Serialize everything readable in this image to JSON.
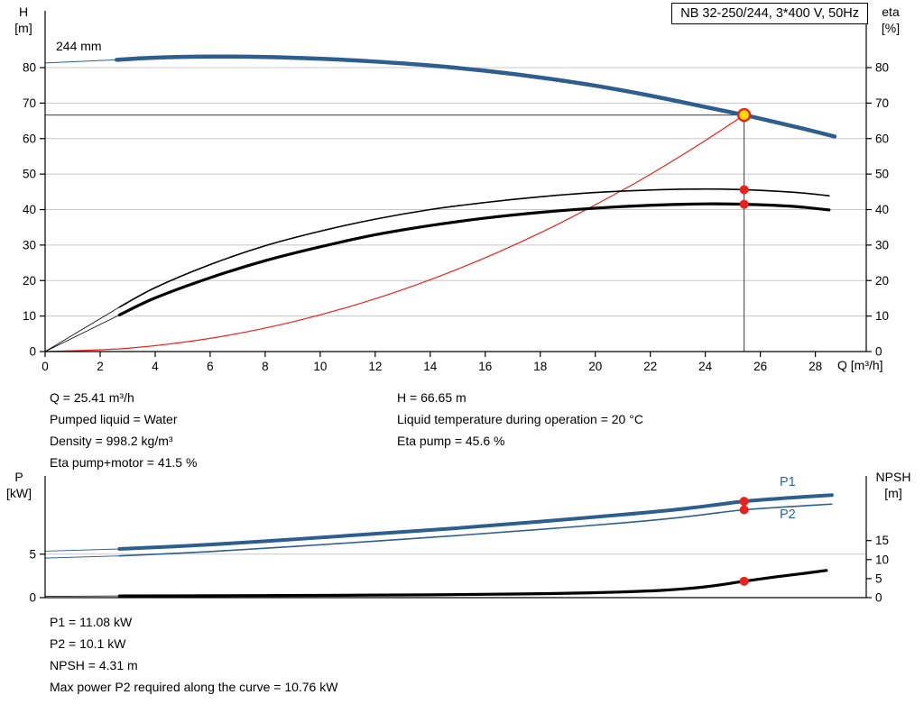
{
  "axis_labels": {
    "top_left": [
      "H",
      "[m]"
    ],
    "top_right": [
      "eta",
      "[%]"
    ],
    "x": "Q [m³/h]",
    "bottom_left": [
      "P",
      "[kW]"
    ],
    "bottom_right": [
      "NPSH",
      "[m]"
    ]
  },
  "results_top": {
    "col_left": [
      "Q = 25.41 m³/h",
      "Pumped liquid = Water",
      "Density = 998.2 kg/m³",
      "Eta pump+motor = 41.5 %"
    ],
    "col_right": [
      "H = 66.65 m",
      "Liquid temperature during operation = 20 °C",
      "Eta pump = 45.6 %"
    ]
  },
  "results_bottom": [
    "P1 = 11.08 kW",
    "P2 = 10.1 kW",
    "NPSH = 4.31 m",
    "Max power P2 required along the curve = 10.76 kW"
  ],
  "operating_point": {
    "Q_m3h": 25.41,
    "H_m": 66.65,
    "eta_pump_pct": 45.6,
    "eta_pump_motor_pct": 41.5,
    "P1_kW": 11.08,
    "P2_kW": 10.1,
    "NPSH_m": 4.31,
    "max_P2_kW": 10.76,
    "liquid": "Water",
    "liquid_temp_C": 20,
    "density_kg_m3": 998.2
  },
  "colors": {
    "curve_blue": "#2d5f8e",
    "label_blue": "#2468b4",
    "red": "#e8231e",
    "duty_yellow": "#ffd800",
    "grid": "#c8c8c8",
    "axis": "#000000",
    "ref_line": "#3c3c3c"
  },
  "chart_data": [
    {
      "type": "line",
      "title": "NB 32-250/244, 3*400 V, 50Hz",
      "curve_label": "244 mm",
      "xlabel": "Q [m³/h]",
      "ylabel_left": "H [m]",
      "ylabel_right": "eta [%]",
      "xlim": [
        0,
        29.85
      ],
      "x_ticks": [
        0,
        2,
        4,
        6,
        8,
        10,
        12,
        14,
        16,
        18,
        20,
        22,
        24,
        26,
        28
      ],
      "ylim_left": [
        0,
        96
      ],
      "y_ticks_left": [
        0,
        10,
        20,
        30,
        40,
        50,
        60,
        70,
        80
      ],
      "ylim_right": [
        0,
        96
      ],
      "y_ticks_right": [
        0,
        10,
        20,
        30,
        40,
        50,
        60,
        70,
        80
      ],
      "grid": "horizontal",
      "series": [
        {
          "name": "duty-h-line",
          "axis": "left",
          "color": "#3c3c3c",
          "width": 1,
          "straight": true,
          "points": [
            [
              0,
              66.65
            ],
            [
              25.41,
              66.65
            ]
          ]
        },
        {
          "name": "duty-v-line",
          "axis": "left",
          "color": "#3c3c3c",
          "width": 1,
          "straight": true,
          "points": [
            [
              25.41,
              0
            ],
            [
              25.41,
              66.65
            ]
          ]
        },
        {
          "name": "system-curve",
          "axis": "left",
          "color": "#e8231e",
          "width": 1.2,
          "points": [
            [
              0,
              0
            ],
            [
              3,
              0.93
            ],
            [
              6,
              3.72
            ],
            [
              9,
              8.36
            ],
            [
              12,
              14.86
            ],
            [
              15,
              23.22
            ],
            [
              18,
              33.44
            ],
            [
              21,
              45.52
            ],
            [
              23,
              54.6
            ],
            [
              24.5,
              61.97
            ],
            [
              25.41,
              66.65
            ]
          ]
        },
        {
          "name": "eta-pump-lead-in",
          "axis": "right",
          "color": "#000000",
          "width": 0.8,
          "straight": true,
          "points": [
            [
              0,
              0
            ],
            [
              2.7,
              12.5
            ]
          ]
        },
        {
          "name": "eta-pump-motor-lead-in",
          "axis": "right",
          "color": "#000000",
          "width": 0.8,
          "straight": true,
          "points": [
            [
              0,
              0
            ],
            [
              2.7,
              10.3
            ]
          ]
        },
        {
          "name": "eta-pump-curve",
          "axis": "right",
          "color": "#000000",
          "width": 1.6,
          "points": [
            [
              2.7,
              12.5
            ],
            [
              4,
              18
            ],
            [
              6,
              24.5
            ],
            [
              8,
              29.8
            ],
            [
              10,
              33.9
            ],
            [
              12,
              37.3
            ],
            [
              14,
              40
            ],
            [
              16,
              42
            ],
            [
              18,
              43.6
            ],
            [
              20,
              44.8
            ],
            [
              22,
              45.5
            ],
            [
              24,
              45.8
            ],
            [
              25.41,
              45.6
            ],
            [
              26.5,
              45.2
            ],
            [
              27.5,
              44.7
            ],
            [
              28.5,
              43.9
            ]
          ]
        },
        {
          "name": "eta-pump-motor-curve",
          "axis": "right",
          "color": "#000000",
          "width": 3.2,
          "points": [
            [
              2.7,
              10.3
            ],
            [
              4,
              15.1
            ],
            [
              6,
              20.8
            ],
            [
              8,
              25.6
            ],
            [
              10,
              29.5
            ],
            [
              12,
              32.9
            ],
            [
              14,
              35.5
            ],
            [
              16,
              37.6
            ],
            [
              18,
              39.2
            ],
            [
              20,
              40.4
            ],
            [
              22,
              41.2
            ],
            [
              24,
              41.6
            ],
            [
              25.41,
              41.5
            ],
            [
              26.5,
              41.2
            ],
            [
              27.5,
              40.7
            ],
            [
              28.5,
              39.9
            ]
          ]
        },
        {
          "name": "pump-curve-lead-in",
          "axis": "left",
          "color": "#2d5f8e",
          "width": 1,
          "straight": true,
          "points": [
            [
              0,
              81.3
            ],
            [
              2.6,
              82.2
            ]
          ]
        },
        {
          "name": "pump-curve-244mm",
          "axis": "left",
          "color": "#2d5f8e",
          "width": 4.5,
          "points": [
            [
              2.6,
              82.2
            ],
            [
              4,
              82.8
            ],
            [
              6,
              83.1
            ],
            [
              8,
              83
            ],
            [
              10,
              82.5
            ],
            [
              12,
              81.7
            ],
            [
              14,
              80.6
            ],
            [
              16,
              79.1
            ],
            [
              18,
              77.2
            ],
            [
              20,
              74.9
            ],
            [
              22,
              72.1
            ],
            [
              24,
              68.9
            ],
            [
              25.41,
              66.65
            ],
            [
              26.4,
              64.9
            ],
            [
              27.5,
              62.9
            ],
            [
              28.7,
              60.6
            ]
          ]
        }
      ],
      "markers": [
        {
          "name": "eta-pump-point",
          "axis": "right",
          "x": 25.41,
          "y": 45.6,
          "r": 5,
          "fill": "#e8231e"
        },
        {
          "name": "eta-pump-motor-point",
          "axis": "right",
          "x": 25.41,
          "y": 41.5,
          "r": 5,
          "fill": "#e8231e"
        },
        {
          "name": "duty-point",
          "axis": "left",
          "x": 25.41,
          "y": 66.65,
          "r": 6.5,
          "fill": "#ffd800",
          "stroke": "#e8231e",
          "stroke_width": 2.4,
          "interactable": true
        }
      ]
    },
    {
      "type": "line",
      "title": "",
      "xlabel": "",
      "ylabel_left": "P [kW]",
      "ylabel_right": "NPSH [m]",
      "xlim": [
        0,
        29.85
      ],
      "x_ticks": [],
      "ylim_left": [
        0,
        14
      ],
      "y_ticks_left": [
        0,
        5
      ],
      "ylim_right": [
        0,
        32
      ],
      "y_ticks_right": [
        0,
        5,
        10,
        15
      ],
      "grid": "horizontal",
      "series_labels": [
        "P1",
        "P2"
      ],
      "series": [
        {
          "name": "p1-lead-in",
          "axis": "left",
          "color": "#2d5f8e",
          "width": 0.9,
          "straight": true,
          "points": [
            [
              0,
              5.35
            ],
            [
              2.7,
              5.6
            ]
          ]
        },
        {
          "name": "p2-lead-in",
          "axis": "left",
          "color": "#2d5f8e",
          "width": 0.9,
          "straight": true,
          "points": [
            [
              0,
              4.55
            ],
            [
              2.7,
              4.8
            ]
          ]
        },
        {
          "name": "npsh-lead-in",
          "axis": "right",
          "color": "#000000",
          "width": 0.8,
          "straight": true,
          "points": [
            [
              0,
              0.35
            ],
            [
              2.7,
              0.45
            ]
          ]
        },
        {
          "name": "p1-curve",
          "axis": "left",
          "color": "#2d5f8e",
          "width": 4,
          "points": [
            [
              2.7,
              5.6
            ],
            [
              6,
              6.1
            ],
            [
              9,
              6.7
            ],
            [
              12,
              7.35
            ],
            [
              15,
              8
            ],
            [
              18,
              8.75
            ],
            [
              21,
              9.55
            ],
            [
              23,
              10.15
            ],
            [
              24.5,
              10.72
            ],
            [
              25.41,
              11.08
            ],
            [
              26.5,
              11.35
            ],
            [
              27.5,
              11.58
            ],
            [
              28.6,
              11.8
            ]
          ]
        },
        {
          "name": "p2-curve",
          "axis": "left",
          "color": "#2d5f8e",
          "width": 1.6,
          "points": [
            [
              2.7,
              4.8
            ],
            [
              6,
              5.3
            ],
            [
              9,
              5.88
            ],
            [
              12,
              6.5
            ],
            [
              15,
              7.15
            ],
            [
              18,
              7.85
            ],
            [
              21,
              8.6
            ],
            [
              23,
              9.2
            ],
            [
              24.5,
              9.78
            ],
            [
              25.41,
              10.1
            ],
            [
              26.5,
              10.35
            ],
            [
              27.5,
              10.55
            ],
            [
              28.6,
              10.76
            ]
          ]
        },
        {
          "name": "npsh-curve",
          "axis": "right",
          "color": "#000000",
          "width": 3.2,
          "points": [
            [
              2.7,
              0.45
            ],
            [
              6,
              0.5
            ],
            [
              10,
              0.6
            ],
            [
              14,
              0.75
            ],
            [
              17,
              0.95
            ],
            [
              19,
              1.15
            ],
            [
              21,
              1.5
            ],
            [
              22.5,
              1.95
            ],
            [
              24,
              2.85
            ],
            [
              25.41,
              4.31
            ],
            [
              26.5,
              5.4
            ],
            [
              27.5,
              6.3
            ],
            [
              28.4,
              7.15
            ]
          ]
        }
      ],
      "markers": [
        {
          "name": "p1-point",
          "axis": "left",
          "x": 25.41,
          "y": 11.08,
          "r": 5,
          "fill": "#e8231e"
        },
        {
          "name": "p2-point",
          "axis": "left",
          "x": 25.41,
          "y": 10.1,
          "r": 5,
          "fill": "#e8231e"
        },
        {
          "name": "npsh-point",
          "axis": "right",
          "x": 25.41,
          "y": 4.31,
          "r": 5,
          "fill": "#e8231e"
        }
      ]
    }
  ]
}
